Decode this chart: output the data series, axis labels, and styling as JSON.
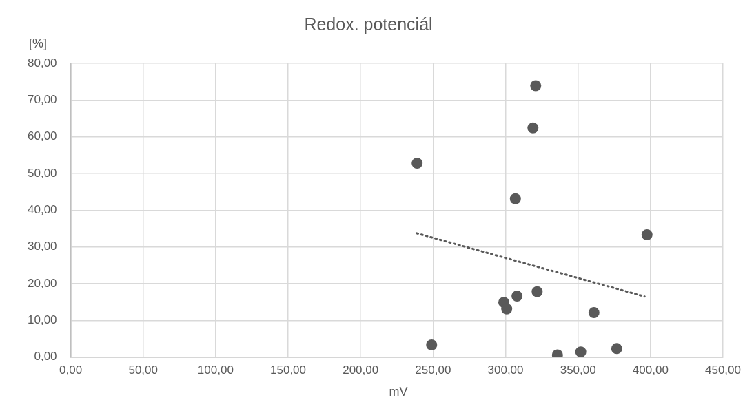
{
  "chart_data": {
    "type": "scatter",
    "title": "Redox. potenciál",
    "xlabel": "mV",
    "ylabel": "[%]",
    "series": [
      {
        "type": "scatter",
        "color": "#595959",
        "marker": "circle",
        "x": [
          239,
          320.8,
          318.9,
          306.8,
          397.6,
          249,
          298.8,
          300.8,
          307.9,
          321.8,
          361,
          335.8,
          351.9,
          376.7
        ],
        "values": [
          52.8,
          73.9,
          62.4,
          43.1,
          33.3,
          3.3,
          14.9,
          13.1,
          16.6,
          17.8,
          12.1,
          0.6,
          1.4,
          2.3
        ]
      },
      {
        "type": "line",
        "color": "#595959",
        "marker": "none",
        "line_style": "dotted",
        "x": [
          238.7,
          395.9
        ],
        "values": [
          33.7,
          16.5
        ]
      }
    ],
    "xlim": [
      0,
      450
    ],
    "xticks": [
      {
        "value": 0,
        "label": "0,00"
      },
      {
        "value": 50,
        "label": "50,00"
      },
      {
        "value": 100,
        "label": "100,00"
      },
      {
        "value": 150,
        "label": "150,00"
      },
      {
        "value": 200,
        "label": "200,00"
      },
      {
        "value": 250,
        "label": "250,00"
      },
      {
        "value": 300,
        "label": "300,00"
      },
      {
        "value": 350,
        "label": "350,00"
      },
      {
        "value": 400,
        "label": "400,00"
      },
      {
        "value": 450,
        "label": "450,00"
      }
    ],
    "ylim": [
      0,
      80
    ],
    "yticks": [
      {
        "value": 0,
        "label": "0,00"
      },
      {
        "value": 10,
        "label": "10,00"
      },
      {
        "value": 20,
        "label": "20,00"
      },
      {
        "value": 30,
        "label": "30,00"
      },
      {
        "value": 40,
        "label": "40,00"
      },
      {
        "value": 50,
        "label": "50,00"
      },
      {
        "value": 60,
        "label": "60,00"
      },
      {
        "value": 70,
        "label": "70,00"
      },
      {
        "value": 80,
        "label": "80,00"
      }
    ],
    "grid": true,
    "legend": false
  }
}
